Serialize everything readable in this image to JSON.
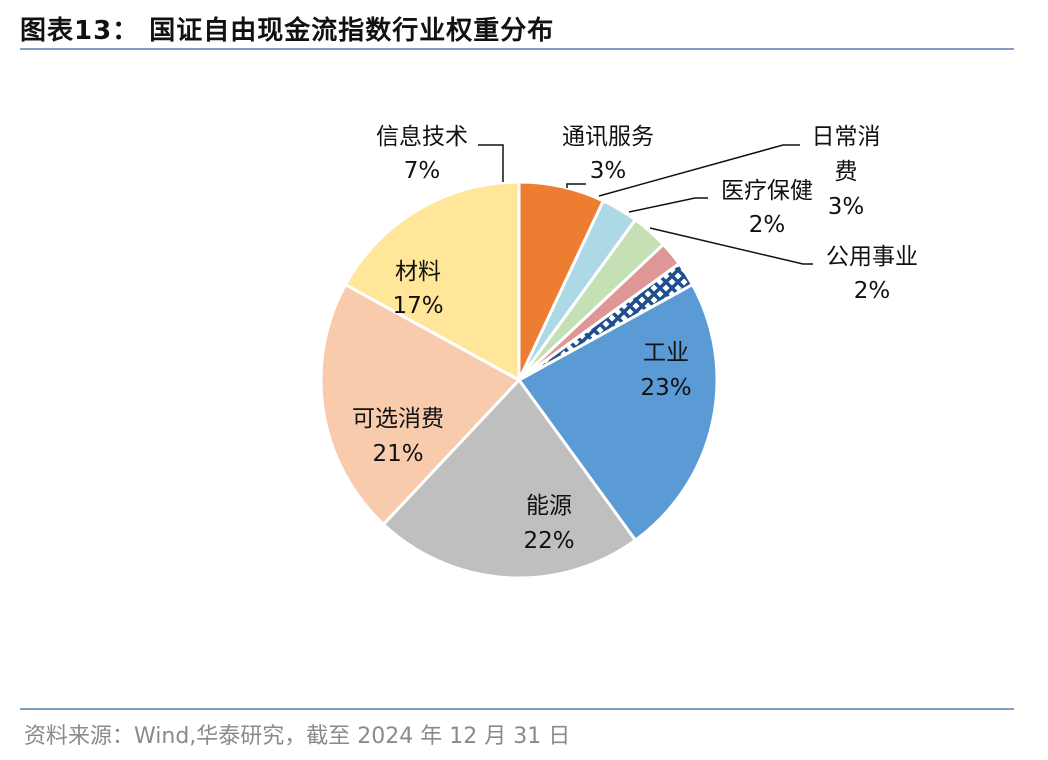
{
  "figure": {
    "title": "图表13：  国证自由现金流指数行业权重分布",
    "source": "资料来源：Wind,华泰研究，截至 2024 年 12 月 31 日"
  },
  "colors": {
    "rule": "#7f9ec2",
    "source_text": "#8a8a8a"
  },
  "chart_data": {
    "type": "pie",
    "title": "",
    "start": "clockwise from 12 o'clock",
    "slices": [
      {
        "name": "信息技术",
        "label": "7%",
        "value": 7,
        "color": "#ed7d31"
      },
      {
        "name": "通讯服务",
        "label": "3%",
        "value": 3,
        "color": "#add8e6"
      },
      {
        "name": "日常消费",
        "label": "3%",
        "value": 3,
        "color": "#c5e0b4"
      },
      {
        "name": "医疗保健",
        "label": "2%",
        "value": 2,
        "color": "#de9696"
      },
      {
        "name": "公用事业",
        "label": "2%",
        "value": 2,
        "color": "#1f4e8c",
        "pattern": "crosshatch"
      },
      {
        "name": "工业",
        "label": "23%",
        "value": 23,
        "color": "#5b9bd5"
      },
      {
        "name": "能源",
        "label": "22%",
        "value": 22,
        "color": "#bfbfbf"
      },
      {
        "name": "可选消费",
        "label": "21%",
        "value": 21,
        "color": "#f8cbad"
      },
      {
        "name": "材料",
        "label": "17%",
        "value": 17,
        "color": "#ffe699"
      }
    ]
  }
}
